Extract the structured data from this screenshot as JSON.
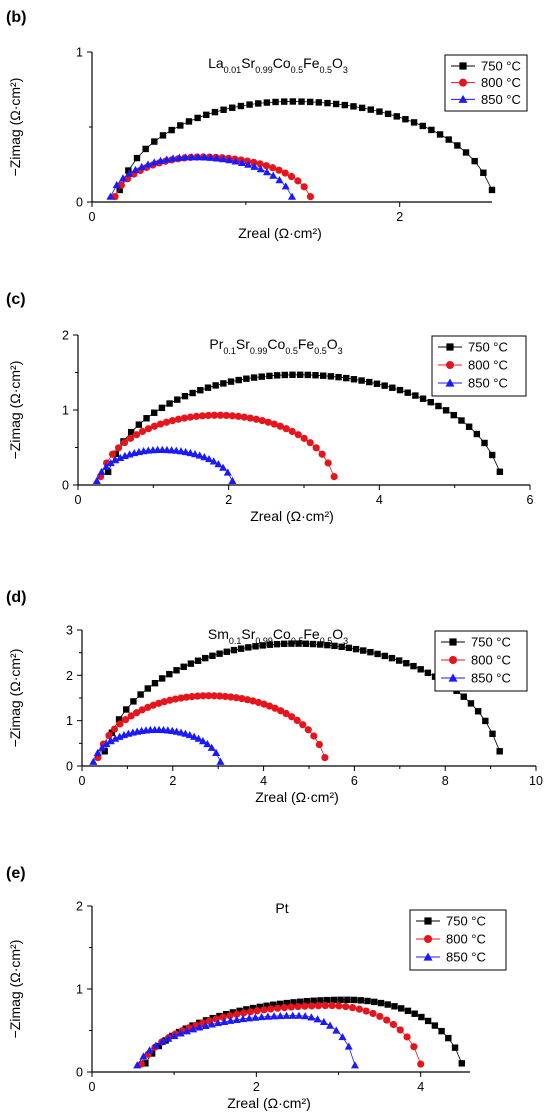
{
  "chart_data": [
    {
      "type": "scatter",
      "panel_label": "(b)",
      "title_parts": [
        {
          "t": "La",
          "s": ""
        },
        {
          "t": "0.01",
          "s": "sub"
        },
        {
          "t": "Sr",
          "s": ""
        },
        {
          "t": "0.99",
          "s": "sub"
        },
        {
          "t": "Co",
          "s": ""
        },
        {
          "t": "0.5",
          "s": "sub"
        },
        {
          "t": "Fe",
          "s": ""
        },
        {
          "t": "0.5",
          "s": "sub"
        },
        {
          "t": "O",
          "s": ""
        },
        {
          "t": "3",
          "s": "sub"
        }
      ],
      "xlabel": "Zreal (Ω·cm²)",
      "ylabel": "−Zimag (Ω·cm²)",
      "xlim": [
        0,
        2.6
      ],
      "ylim": [
        0,
        1
      ],
      "xticks": [
        0,
        2
      ],
      "yticks": [
        0,
        1
      ],
      "xminor": [
        1
      ],
      "yminor": [
        0.5
      ],
      "series": [
        {
          "name": "750 °C",
          "color": "#000000",
          "marker": "square",
          "arc": {
            "x0": 0.18,
            "x1": 2.6,
            "peak": 0.67,
            "xpeak": 1.3,
            "n": 44
          }
        },
        {
          "name": "800 °C",
          "color": "#e8141c",
          "marker": "circle",
          "arc": {
            "x0": 0.15,
            "x1": 1.42,
            "peak": 0.3,
            "xpeak": 0.72,
            "n": 32
          }
        },
        {
          "name": "850 °C",
          "color": "#1a1aff",
          "marker": "triangle",
          "arc": {
            "x0": 0.12,
            "x1": 1.3,
            "peak": 0.3,
            "xpeak": 0.66,
            "n": 30
          }
        }
      ]
    },
    {
      "type": "scatter",
      "panel_label": "(c)",
      "title_parts": [
        {
          "t": "Pr",
          "s": ""
        },
        {
          "t": "0.1",
          "s": "sub"
        },
        {
          "t": "Sr",
          "s": ""
        },
        {
          "t": "0.99",
          "s": "sub"
        },
        {
          "t": "Co",
          "s": ""
        },
        {
          "t": "0.5",
          "s": "sub"
        },
        {
          "t": "Fe",
          "s": ""
        },
        {
          "t": "0.5",
          "s": "sub"
        },
        {
          "t": "O",
          "s": ""
        },
        {
          "t": "3",
          "s": "sub"
        }
      ],
      "xlabel": "Zreal (Ω·cm²)",
      "ylabel": "−Zimag (Ω·cm²)",
      "xlim": [
        0,
        6
      ],
      "ylim": [
        0,
        2
      ],
      "xticks": [
        0,
        2,
        4,
        6
      ],
      "yticks": [
        0,
        1,
        2
      ],
      "xminor": [
        1,
        3,
        5
      ],
      "yminor": [
        0.5,
        1.5
      ],
      "series": [
        {
          "name": "750 °C",
          "color": "#000000",
          "marker": "square",
          "arc": {
            "x0": 0.4,
            "x1": 5.6,
            "peak": 1.47,
            "xpeak": 2.9,
            "n": 52
          }
        },
        {
          "name": "800 °C",
          "color": "#e8141c",
          "marker": "circle",
          "arc": {
            "x0": 0.3,
            "x1": 3.4,
            "peak": 0.93,
            "xpeak": 1.85,
            "n": 40
          }
        },
        {
          "name": "850 °C",
          "color": "#1a1aff",
          "marker": "triangle",
          "arc": {
            "x0": 0.25,
            "x1": 2.05,
            "peak": 0.47,
            "xpeak": 1.1,
            "n": 30
          }
        }
      ]
    },
    {
      "type": "scatter",
      "panel_label": "(d)",
      "title_parts": [
        {
          "t": "Sm",
          "s": ""
        },
        {
          "t": "0.1",
          "s": "sub"
        },
        {
          "t": "Sr",
          "s": ""
        },
        {
          "t": "0.99",
          "s": "sub"
        },
        {
          "t": "Co",
          "s": ""
        },
        {
          "t": "0.5",
          "s": "sub"
        },
        {
          "t": "Fe",
          "s": ""
        },
        {
          "t": "0.5",
          "s": "sub"
        },
        {
          "t": "O",
          "s": ""
        },
        {
          "t": "3",
          "s": "sub"
        }
      ],
      "xlabel": "Zreal (Ω·cm²)",
      "ylabel": "−Zimag (Ω·cm²)",
      "xlim": [
        0,
        10
      ],
      "ylim": [
        0,
        3
      ],
      "xticks": [
        0,
        2,
        4,
        6,
        8,
        10
      ],
      "yticks": [
        0,
        1,
        2,
        3
      ],
      "xminor": [
        1,
        3,
        5,
        7,
        9
      ],
      "yminor": [
        0.5,
        1.5,
        2.5
      ],
      "series": [
        {
          "name": "750 °C",
          "color": "#000000",
          "marker": "square",
          "arc": {
            "x0": 0.5,
            "x1": 9.2,
            "peak": 2.7,
            "xpeak": 4.7,
            "n": 56
          }
        },
        {
          "name": "800 °C",
          "color": "#e8141c",
          "marker": "circle",
          "arc": {
            "x0": 0.35,
            "x1": 5.35,
            "peak": 1.55,
            "xpeak": 2.8,
            "n": 42
          }
        },
        {
          "name": "850 °C",
          "color": "#1a1aff",
          "marker": "triangle",
          "arc": {
            "x0": 0.25,
            "x1": 3.05,
            "peak": 0.8,
            "xpeak": 1.65,
            "n": 30
          }
        }
      ]
    },
    {
      "type": "scatter",
      "panel_label": "(e)",
      "title_parts": [
        {
          "t": "Pt",
          "s": ""
        }
      ],
      "xlabel": "Zreal (Ω·cm²)",
      "ylabel": "−Zimag (Ω·cm²)",
      "xlim": [
        0,
        4.6
      ],
      "ylim": [
        0,
        2
      ],
      "xticks": [
        0,
        2,
        4
      ],
      "yticks": [
        0,
        1,
        2
      ],
      "xminor": [
        1,
        3
      ],
      "yminor": [
        0.5,
        1.5
      ],
      "series": [
        {
          "name": "750 °C",
          "color": "#000000",
          "marker": "square",
          "arc": {
            "x0": 0.65,
            "x1": 4.5,
            "peak": 0.87,
            "xpeak": 3.1,
            "n": 48
          }
        },
        {
          "name": "800 °C",
          "color": "#e8141c",
          "marker": "circle",
          "arc": {
            "x0": 0.6,
            "x1": 4.0,
            "peak": 0.8,
            "xpeak": 2.9,
            "n": 42
          }
        },
        {
          "name": "850 °C",
          "color": "#1a1aff",
          "marker": "triangle",
          "arc": {
            "x0": 0.55,
            "x1": 3.2,
            "peak": 0.68,
            "xpeak": 2.5,
            "n": 36
          }
        }
      ]
    }
  ]
}
